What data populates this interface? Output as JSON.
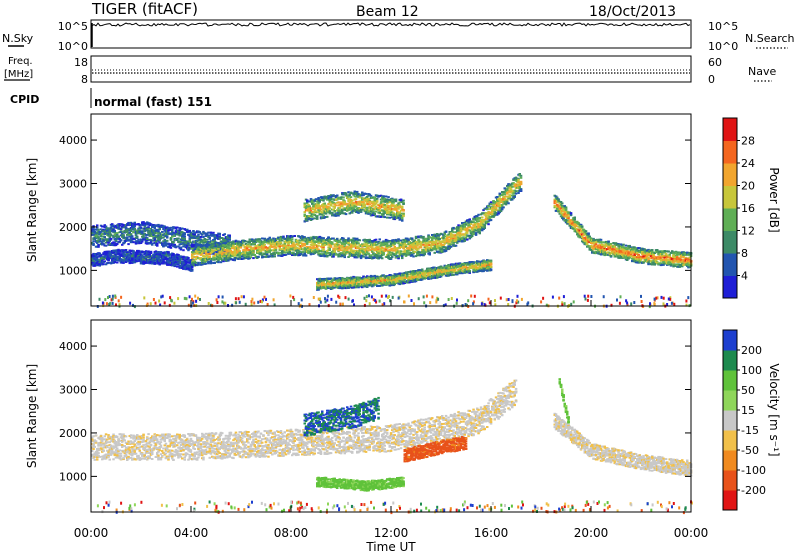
{
  "header": {
    "title_left": "TIGER (fitACF)",
    "title_center": "Beam 12",
    "title_right": "18/Oct/2013"
  },
  "strips": {
    "nsky_label": "N.Sky",
    "nsearch_label": "N.Search",
    "freq_label_line1": "Freq.",
    "freq_label_line2": "[MHz]",
    "nave_label": "Nave",
    "cpid_label": "CPID",
    "cpid_value": "normal (fast) 151",
    "noise_ticks": [
      "10^5",
      "10^0"
    ],
    "freq_ticks": [
      "18",
      "8"
    ],
    "nave_ticks": [
      "60",
      "0"
    ],
    "colors": {
      "series": "#000000"
    }
  },
  "chart_data": [
    {
      "type": "heatmap",
      "name": "power-panel",
      "xlabel": "Time UT",
      "ylabel": "Slant Range [km]",
      "x_ticks": [
        "00:00",
        "04:00",
        "08:00",
        "12:00",
        "16:00",
        "20:00",
        "00:00"
      ],
      "x_range_hours": [
        0,
        24
      ],
      "y_ticks": [
        1000,
        2000,
        3000,
        4000
      ],
      "ylim": [
        180,
        4600
      ],
      "colorbar": {
        "label": "Power [dB]",
        "ticks": [
          4,
          8,
          12,
          16,
          20,
          24,
          28
        ],
        "range": [
          0,
          32
        ],
        "colors": [
          "#1f1fd6",
          "#2255b0",
          "#3c8a66",
          "#5fae55",
          "#c7c63a",
          "#f1a52e",
          "#f4661f",
          "#e01414"
        ]
      },
      "echo_bands": [
        {
          "t": [
            0,
            2,
            4,
            5.5
          ],
          "range_center": [
            1800,
            1900,
            1700,
            1600
          ],
          "width": 500,
          "level": 2
        },
        {
          "t": [
            0,
            1,
            3,
            4
          ],
          "range_center": [
            1250,
            1350,
            1300,
            1150
          ],
          "width": 300,
          "level": 1
        },
        {
          "t": [
            4,
            6,
            8,
            10,
            12,
            14,
            15.5,
            16.5,
            17.2
          ],
          "range_center": [
            1350,
            1500,
            1600,
            1550,
            1500,
            1650,
            2100,
            2700,
            3100
          ],
          "width": 450,
          "level": 5
        },
        {
          "t": [
            8.5,
            10.5,
            12.5
          ],
          "range_center": [
            2400,
            2600,
            2400
          ],
          "width": 500,
          "level": 5
        },
        {
          "t": [
            9,
            12,
            14.5,
            16
          ],
          "range_center": [
            700,
            800,
            1050,
            1150
          ],
          "width": 250,
          "level": 5
        },
        {
          "t": [
            18.5,
            20,
            22,
            24
          ],
          "range_center": [
            2600,
            1600,
            1350,
            1250
          ],
          "width": 350,
          "level": 6
        }
      ]
    },
    {
      "type": "heatmap",
      "name": "velocity-panel",
      "xlabel": "Time UT",
      "ylabel": "Slant Range [km]",
      "x_ticks": [
        "00:00",
        "04:00",
        "08:00",
        "12:00",
        "16:00",
        "20:00",
        "00:00"
      ],
      "x_range_hours": [
        0,
        24
      ],
      "y_ticks": [
        1000,
        2000,
        3000,
        4000
      ],
      "ylim": [
        180,
        4600
      ],
      "colorbar": {
        "label": "Velocity [m s⁻¹]",
        "ticks": [
          200,
          100,
          50,
          15,
          -15,
          -50,
          -100,
          -200
        ],
        "colors": [
          "#1d3fcf",
          "#1d8a4e",
          "#5fc23a",
          "#8fd65a",
          "#c8c8c8",
          "#f1c04a",
          "#f08a1f",
          "#e8521a",
          "#e01414"
        ]
      },
      "echo_bands": [
        {
          "t": [
            0,
            4,
            8,
            12,
            15.5,
            17
          ],
          "range_center": [
            1700,
            1700,
            1800,
            1900,
            2300,
            3000
          ],
          "width": 600,
          "vel": -10
        },
        {
          "t": [
            8.5,
            10.5,
            11.5
          ],
          "range_center": [
            2200,
            2400,
            2600
          ],
          "width": 500,
          "vel": 150
        },
        {
          "t": [
            12.5,
            14,
            15
          ],
          "range_center": [
            1500,
            1700,
            1800
          ],
          "width": 300,
          "vel": -100
        },
        {
          "t": [
            9,
            11,
            12.5
          ],
          "range_center": [
            900,
            800,
            900
          ],
          "width": 220,
          "vel": 40
        },
        {
          "t": [
            18.5,
            20,
            22,
            24
          ],
          "range_center": [
            2300,
            1600,
            1350,
            1200
          ],
          "width": 350,
          "vel": -10
        },
        {
          "t": [
            18.7,
            19.1
          ],
          "range_center": [
            3200,
            2200
          ],
          "width": 150,
          "vel": 40
        }
      ]
    }
  ]
}
